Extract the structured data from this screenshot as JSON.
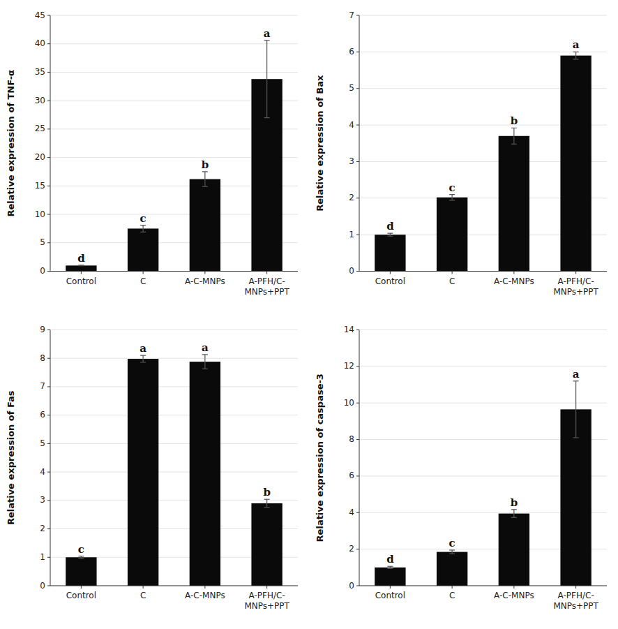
{
  "chart_data": [
    {
      "type": "bar",
      "ylabel": "Relative expression of TNF-α",
      "categories": [
        "Control",
        "C",
        "A-C-MNPs",
        "A-PFH/C-\nMNPs+PPT"
      ],
      "values": [
        1.0,
        7.5,
        16.2,
        33.8
      ],
      "errors": [
        0.05,
        0.6,
        1.3,
        6.8
      ],
      "annotations": [
        "d",
        "c",
        "b",
        "a"
      ],
      "color": "#0a0a0a",
      "ylim": [
        0,
        45
      ],
      "yticks": [
        0,
        5,
        10,
        15,
        20,
        25,
        30,
        35,
        40,
        45
      ],
      "grid": true
    },
    {
      "type": "bar",
      "ylabel": "Relative expression of Bax",
      "categories": [
        "Control",
        "C",
        "A-C-MNPs",
        "A-PFH/C-\nMNPs+PPT"
      ],
      "values": [
        1.0,
        2.02,
        3.7,
        5.9
      ],
      "errors": [
        0.04,
        0.08,
        0.22,
        0.1
      ],
      "annotations": [
        "d",
        "c",
        "b",
        "a"
      ],
      "color": "#0a0a0a",
      "ylim": [
        0,
        7
      ],
      "yticks": [
        0,
        1,
        2,
        3,
        4,
        5,
        6,
        7
      ],
      "grid": true
    },
    {
      "type": "bar",
      "ylabel": "Relative expression of Fas",
      "categories": [
        "Control",
        "C",
        "A-C-MNPs",
        "A-PFH/C-\nMNPs+PPT"
      ],
      "values": [
        1.0,
        7.98,
        7.88,
        2.9
      ],
      "errors": [
        0.04,
        0.12,
        0.25,
        0.14
      ],
      "annotations": [
        "c",
        "a",
        "a",
        "b"
      ],
      "color": "#0a0a0a",
      "ylim": [
        0,
        9
      ],
      "yticks": [
        0,
        1,
        2,
        3,
        4,
        5,
        6,
        7,
        8,
        9
      ],
      "grid": true
    },
    {
      "type": "bar",
      "ylabel": "Relative expression of caspase-3",
      "categories": [
        "Control",
        "C",
        "A-C-MNPs",
        "A-PFH/C-\nMNPs+PPT"
      ],
      "values": [
        1.0,
        1.85,
        3.95,
        9.65
      ],
      "errors": [
        0.06,
        0.1,
        0.22,
        1.55
      ],
      "annotations": [
        "d",
        "c",
        "b",
        "a"
      ],
      "color": "#0a0a0a",
      "ylim": [
        0,
        14
      ],
      "yticks": [
        0,
        2,
        4,
        6,
        8,
        10,
        12,
        14
      ],
      "grid": true
    }
  ]
}
